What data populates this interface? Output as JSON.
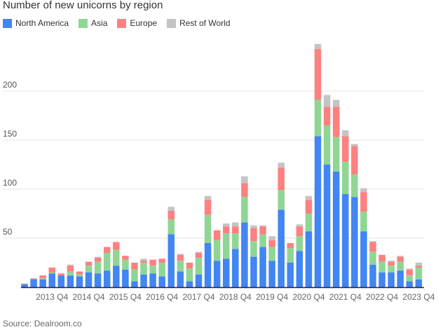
{
  "chart_data": {
    "type": "bar",
    "stacked": true,
    "title": "Number of new unicorns by region",
    "xlabel": "",
    "ylabel": "",
    "ylim": [
      0,
      250
    ],
    "yticks": [
      50,
      100,
      150,
      200
    ],
    "grid": true,
    "legend_placement": "top-left",
    "categories": [
      "2013 Q1",
      "2013 Q2",
      "2013 Q3",
      "2013 Q4",
      "2014 Q1",
      "2014 Q2",
      "2014 Q3",
      "2014 Q4",
      "2015 Q1",
      "2015 Q2",
      "2015 Q3",
      "2015 Q4",
      "2016 Q1",
      "2016 Q2",
      "2016 Q3",
      "2016 Q4",
      "2017 Q1",
      "2017 Q2",
      "2017 Q3",
      "2017 Q4",
      "2018 Q1",
      "2018 Q2",
      "2018 Q3",
      "2018 Q4",
      "2019 Q1",
      "2019 Q2",
      "2019 Q3",
      "2019 Q4",
      "2020 Q1",
      "2020 Q2",
      "2020 Q3",
      "2020 Q4",
      "2021 Q1",
      "2021 Q2",
      "2021 Q3",
      "2021 Q4",
      "2022 Q1",
      "2022 Q2",
      "2022 Q3",
      "2022 Q4",
      "2023 Q1",
      "2023 Q2",
      "2023 Q3",
      "2023 Q4"
    ],
    "xtick_labels": [
      "2013 Q4",
      "2014 Q4",
      "2015 Q4",
      "2016 Q4",
      "2017 Q4",
      "2018 Q4",
      "2019 Q4",
      "2020 Q4",
      "2021 Q4",
      "2022 Q4",
      "2023 Q4"
    ],
    "series": [
      {
        "name": "North America",
        "color": "#4285f4",
        "values": [
          3,
          8,
          8,
          14,
          12,
          12,
          11,
          15,
          14,
          17,
          22,
          18,
          6,
          13,
          14,
          11,
          54,
          16,
          6,
          13,
          45,
          27,
          29,
          39,
          66,
          31,
          41,
          27,
          79,
          25,
          37,
          57,
          154,
          125,
          118,
          95,
          92,
          57,
          23,
          15,
          15,
          17,
          6,
          8
        ]
      },
      {
        "name": "Asia",
        "color": "#8fd694",
        "values": [
          0,
          0,
          1,
          1,
          0,
          4,
          2,
          7,
          12,
          18,
          16,
          10,
          12,
          12,
          8,
          14,
          15,
          11,
          13,
          17,
          29,
          21,
          26,
          16,
          26,
          16,
          13,
          14,
          20,
          15,
          15,
          18,
          37,
          40,
          35,
          33,
          23,
          20,
          13,
          11,
          7,
          9,
          6,
          12
        ]
      },
      {
        "name": "Europe",
        "color": "#ff8080",
        "values": [
          0,
          1,
          3,
          5,
          2,
          6,
          3,
          4,
          4,
          6,
          8,
          4,
          7,
          2,
          6,
          4,
          9,
          6,
          6,
          5,
          15,
          10,
          7,
          7,
          14,
          13,
          8,
          7,
          23,
          5,
          10,
          14,
          52,
          19,
          31,
          26,
          29,
          20,
          10,
          7,
          4,
          5,
          6,
          2
        ]
      },
      {
        "name": "Rest of World",
        "color": "#c4c4c4",
        "values": [
          1,
          0,
          0,
          0,
          0,
          1,
          0,
          0,
          1,
          0,
          0,
          0,
          0,
          2,
          0,
          0,
          4,
          1,
          0,
          1,
          4,
          0,
          3,
          4,
          7,
          3,
          1,
          4,
          5,
          0,
          2,
          4,
          5,
          12,
          7,
          6,
          2,
          4,
          1,
          0,
          1,
          1,
          1,
          3
        ]
      }
    ]
  },
  "source": "Source: Dealroom.co"
}
